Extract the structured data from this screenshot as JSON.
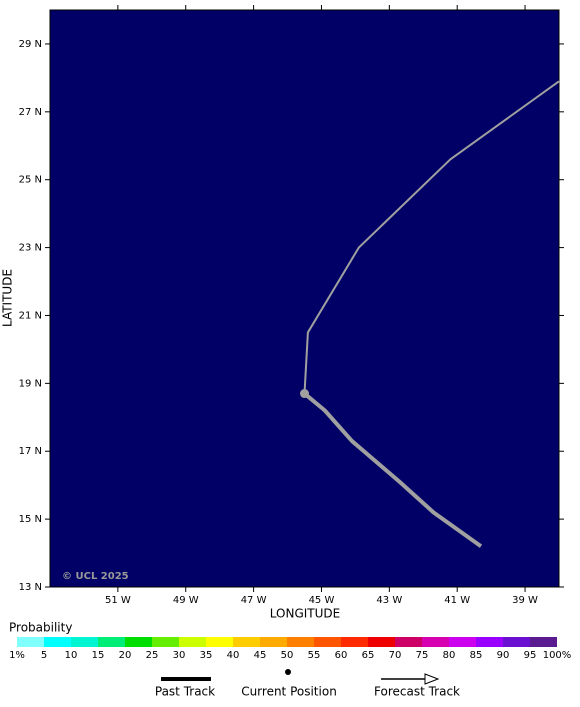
{
  "chart_data": {
    "type": "map",
    "xlabel": "LONGITUDE",
    "ylabel": "LATITUDE",
    "background": "#000066",
    "xlim": [
      -53,
      -38
    ],
    "ylim": [
      13,
      30
    ],
    "xticks": [
      {
        "value": -51,
        "label": "51 W"
      },
      {
        "value": -49,
        "label": "49 W"
      },
      {
        "value": -47,
        "label": "47 W"
      },
      {
        "value": -45,
        "label": "45 W"
      },
      {
        "value": -43,
        "label": "43 W"
      },
      {
        "value": -41,
        "label": "41 W"
      },
      {
        "value": -39,
        "label": "39 W"
      }
    ],
    "yticks": [
      {
        "value": 13,
        "label": "13 N"
      },
      {
        "value": 15,
        "label": "15 N"
      },
      {
        "value": 17,
        "label": "17 N"
      },
      {
        "value": 19,
        "label": "19 N"
      },
      {
        "value": 21,
        "label": "21 N"
      },
      {
        "value": 23,
        "label": "23 N"
      },
      {
        "value": 25,
        "label": "25 N"
      },
      {
        "value": 27,
        "label": "27 N"
      },
      {
        "value": 29,
        "label": "29 N"
      }
    ],
    "series": [
      {
        "name": "Past Track",
        "color": "#a0a0a0",
        "x": [
          -40.3,
          -41.7,
          -42.7,
          -44.1,
          -44.9,
          -45.5
        ],
        "values": [
          14.2,
          15.2,
          16.1,
          17.3,
          18.2,
          18.7
        ]
      },
      {
        "name": "Forecast Track",
        "color": "#a0a0a0",
        "x": [
          -45.5,
          -45.4,
          -43.9,
          -41.2,
          -38.0
        ],
        "values": [
          18.7,
          20.5,
          23.0,
          25.6,
          27.9
        ]
      }
    ],
    "current_position": {
      "name": "Current Position",
      "color": "#a0a0a0",
      "x": -45.5,
      "y": 18.7
    },
    "copyright": "© UCL 2025",
    "colorbar": {
      "title": "Probability",
      "ticks": [
        {
          "value": 1,
          "label": "1%"
        },
        5,
        10,
        15,
        20,
        25,
        30,
        35,
        40,
        45,
        50,
        55,
        60,
        65,
        70,
        75,
        80,
        85,
        90,
        95,
        {
          "value": 100,
          "label": "100%"
        }
      ],
      "colors": [
        "#80ffff",
        "#00ffff",
        "#00f5d0",
        "#00ee77",
        "#00dd00",
        "#66ee00",
        "#ccff00",
        "#ffff00",
        "#ffcc00",
        "#ffaa00",
        "#ff8000",
        "#ff5500",
        "#ff2a00",
        "#ee0000",
        "#cc0066",
        "#d600b0",
        "#cc00ee",
        "#9900ff",
        "#6a10d0",
        "#5a1a90"
      ]
    }
  }
}
